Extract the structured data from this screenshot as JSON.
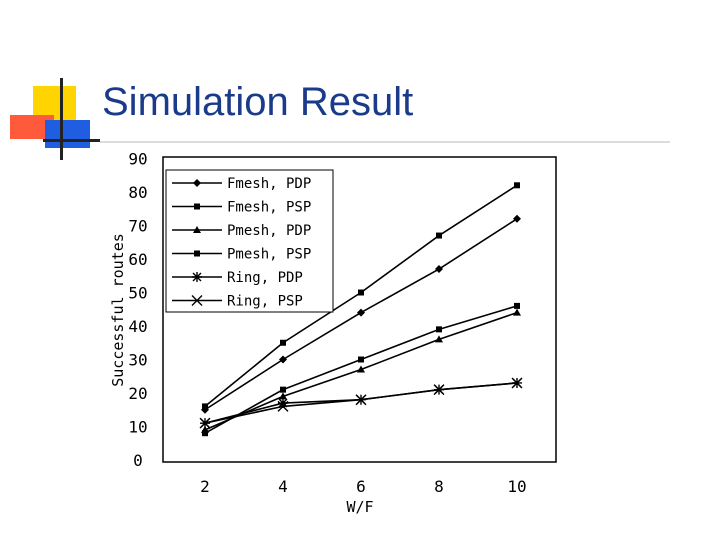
{
  "slide": {
    "title": "Simulation Result"
  },
  "colors": {
    "title": "#1a3a8a",
    "deco_yellow": "#ffd400",
    "deco_red": "#ff5a3c",
    "deco_blue": "#1f5ee0"
  },
  "chart_data": {
    "type": "line",
    "title": "",
    "xlabel": "W/F",
    "ylabel": "Successful routes",
    "xlim": [
      1,
      11
    ],
    "ylim": [
      0,
      90
    ],
    "x_ticks": [
      2,
      4,
      6,
      8,
      10
    ],
    "y_ticks": [
      0,
      10,
      20,
      30,
      40,
      50,
      60,
      70,
      80,
      90
    ],
    "grid": false,
    "legend_position": "top-left",
    "series": [
      {
        "name": "Fmesh, PDP",
        "marker": "diamond",
        "x": [
          2,
          4,
          6,
          8,
          10
        ],
        "values": [
          15,
          30,
          44,
          57,
          72
        ]
      },
      {
        "name": "Fmesh, PSP",
        "marker": "square",
        "x": [
          2,
          4,
          6,
          8,
          10
        ],
        "values": [
          16,
          35,
          50,
          67,
          82
        ]
      },
      {
        "name": "Pmesh, PDP",
        "marker": "triangle",
        "x": [
          2,
          4,
          6,
          8,
          10
        ],
        "values": [
          9,
          19,
          27,
          36,
          44
        ]
      },
      {
        "name": "Pmesh, PSP",
        "marker": "square",
        "x": [
          2,
          4,
          6,
          8,
          10
        ],
        "values": [
          8,
          21,
          30,
          39,
          46
        ]
      },
      {
        "name": "Ring, PDP",
        "marker": "asterisk",
        "x": [
          2,
          4,
          6,
          8,
          10
        ],
        "values": [
          11,
          17,
          18,
          21,
          23
        ]
      },
      {
        "name": "Ring, PSP",
        "marker": "x",
        "x": [
          2,
          4,
          6,
          8,
          10
        ],
        "values": [
          11,
          16,
          18,
          21,
          23
        ]
      }
    ]
  }
}
